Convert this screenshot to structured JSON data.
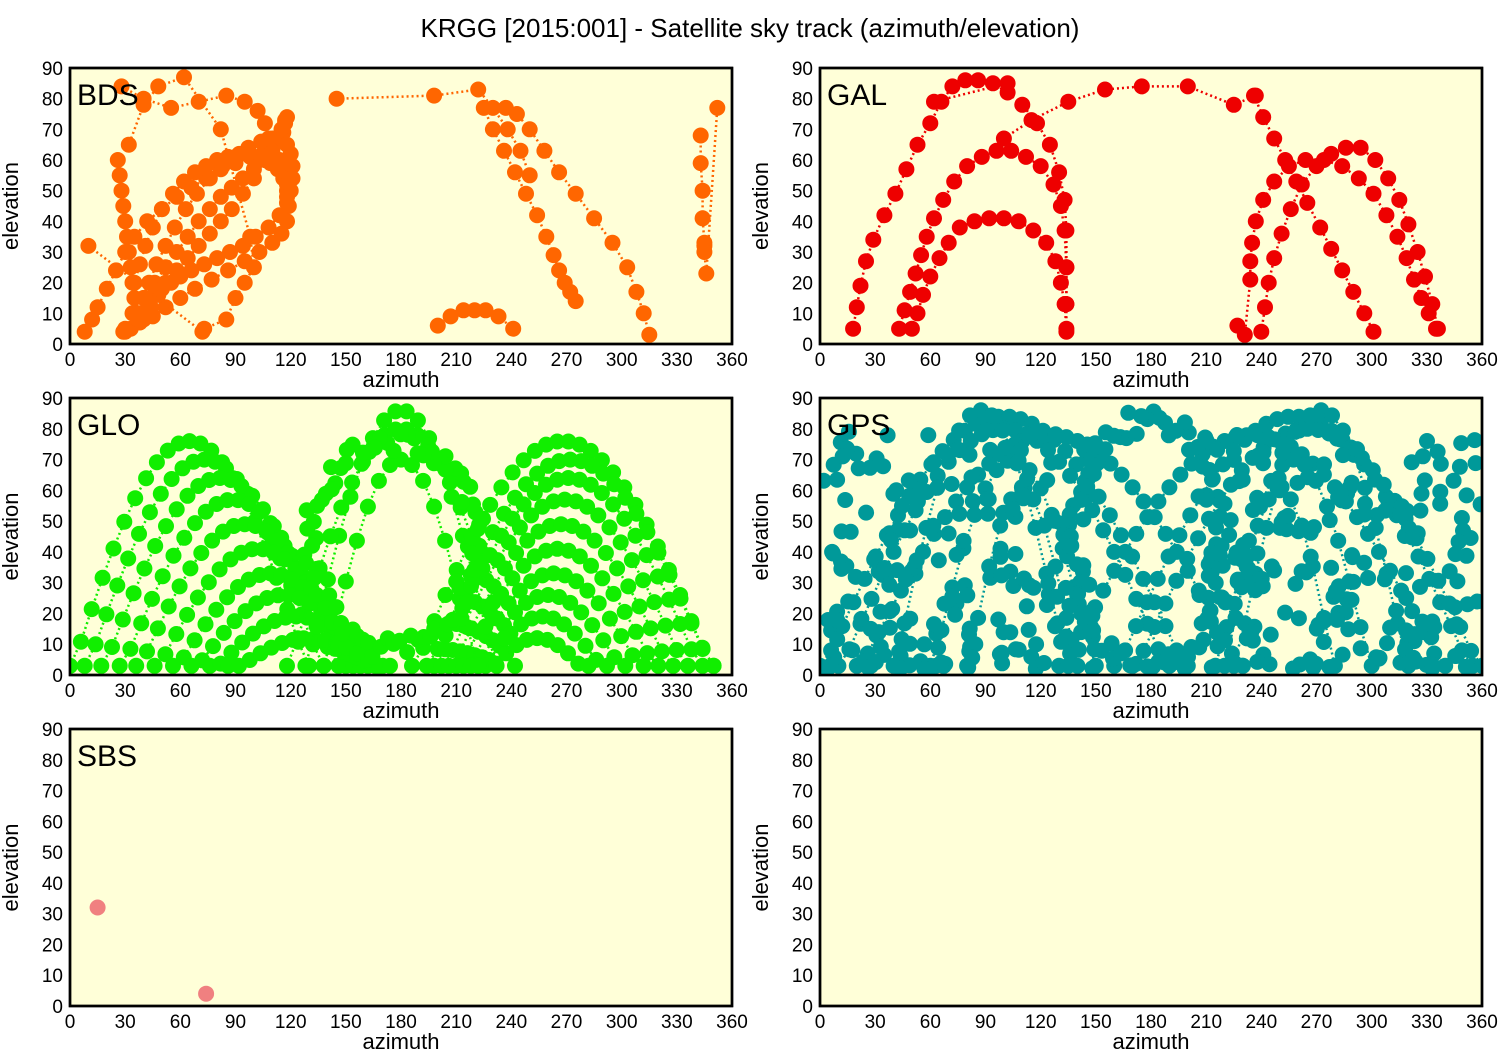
{
  "title": "KRGG [2015:001] - Satellite sky track (azimuth/elevation)",
  "chart_data": [
    {
      "type": "scatter",
      "label": "BDS",
      "color": "#ff6600",
      "xlabel": "azimuth",
      "ylabel": "elevation",
      "xlim": [
        0,
        360
      ],
      "ylim": [
        0,
        90
      ],
      "xticks": [
        0,
        30,
        60,
        90,
        120,
        150,
        180,
        210,
        240,
        270,
        300,
        330,
        360
      ],
      "yticks": [
        0,
        10,
        20,
        30,
        40,
        50,
        60,
        70,
        80,
        90
      ],
      "series": [
        {
          "x": [
            8,
            12,
            15,
            20,
            25,
            30,
            35,
            42,
            50,
            58,
            66,
            74,
            82,
            90,
            98,
            105,
            110,
            114,
            116,
            118,
            119,
            118,
            115,
            110,
            103,
            95,
            86,
            77,
            68,
            60,
            52,
            45,
            38,
            33,
            30,
            29
          ],
          "y": [
            4,
            8,
            12,
            18,
            24,
            30,
            35,
            40,
            44,
            48,
            51,
            54,
            57,
            59,
            61,
            62,
            63,
            60,
            55,
            50,
            45,
            40,
            36,
            33,
            30,
            27,
            24,
            21,
            18,
            15,
            12,
            9,
            7,
            5,
            4,
            4
          ]
        },
        {
          "x": [
            30,
            34,
            40,
            46,
            52,
            58,
            64,
            70,
            76,
            82,
            88,
            94,
            100,
            106,
            110,
            114,
            116,
            117,
            118,
            117,
            115,
            111,
            106,
            100,
            94,
            88,
            82,
            76,
            70,
            64,
            58,
            52,
            48,
            44,
            40
          ],
          "y": [
            5,
            10,
            15,
            20,
            25,
            30,
            35,
            40,
            44,
            48,
            51,
            54,
            57,
            60,
            63,
            66,
            69,
            72,
            74,
            73,
            70,
            66,
            60,
            54,
            49,
            44,
            40,
            36,
            32,
            28,
            24,
            20,
            16,
            12,
            8
          ]
        },
        {
          "x": [
            26,
            27,
            28,
            29,
            30,
            31,
            32,
            33,
            34,
            35,
            36,
            37,
            38,
            40,
            43,
            47,
            52,
            57,
            63,
            69,
            76,
            83,
            90,
            97,
            104,
            110,
            115,
            118,
            120,
            121,
            121,
            120,
            118,
            114,
            108,
            101,
            94,
            87,
            80,
            73,
            66,
            60,
            55,
            50,
            46
          ],
          "y": [
            60,
            55,
            50,
            45,
            40,
            35,
            30,
            25,
            20,
            15,
            10,
            8,
            10,
            15,
            20,
            26,
            32,
            38,
            44,
            49,
            54,
            58,
            61,
            64,
            66,
            67,
            67,
            65,
            62,
            58,
            54,
            50,
            46,
            42,
            38,
            35,
            32,
            30,
            28,
            26,
            24,
            22,
            20,
            18,
            16
          ]
        },
        {
          "x": [
            35,
            38,
            41,
            45,
            50,
            56,
            62,
            68,
            74,
            80,
            86,
            92,
            98,
            104,
            109,
            113,
            116,
            118,
            119,
            118
          ],
          "y": [
            20,
            26,
            32,
            38,
            44,
            49,
            53,
            56,
            58,
            60,
            61,
            62,
            62,
            61,
            59,
            57,
            54,
            52,
            50,
            48
          ]
        },
        {
          "x": [
            28,
            40,
            55,
            70,
            85,
            95,
            102,
            106,
            108,
            109
          ],
          "y": [
            84,
            80,
            77,
            79,
            81,
            79,
            76,
            72,
            67,
            62
          ]
        },
        {
          "x": [
            145,
            198,
            222,
            230,
            238,
            245,
            250
          ],
          "y": [
            80,
            81,
            83,
            77,
            70,
            63,
            55
          ]
        },
        {
          "x": [
            225,
            230,
            236,
            242,
            248,
            254,
            259,
            263,
            266,
            269,
            272,
            275
          ],
          "y": [
            77,
            70,
            63,
            56,
            49,
            42,
            35,
            29,
            24,
            20,
            17,
            14
          ]
        },
        {
          "x": [
            237,
            243,
            250,
            258,
            266,
            275,
            285,
            295,
            303,
            308,
            312,
            315
          ],
          "y": [
            77,
            75,
            70,
            63,
            56,
            49,
            41,
            33,
            25,
            17,
            10,
            3
          ]
        },
        {
          "x": [
            200,
            207,
            214,
            220,
            226,
            233,
            241
          ],
          "y": [
            6,
            9,
            11,
            11,
            11,
            9,
            5
          ]
        },
        {
          "x": [
            343,
            343,
            344,
            344,
            345,
            345,
            345,
            346,
            352
          ],
          "y": [
            68,
            59,
            50,
            41,
            33,
            32,
            30,
            23,
            77
          ]
        },
        {
          "x": [
            10,
            72,
            73,
            85,
            90,
            95,
            100,
            98,
            82,
            62,
            48,
            40,
            32
          ],
          "y": [
            32,
            4,
            5,
            8,
            15,
            20,
            25,
            35,
            70,
            87,
            84,
            78,
            65
          ]
        }
      ]
    },
    {
      "type": "scatter",
      "label": "GAL",
      "color": "#ee0000",
      "xlabel": "azimuth",
      "ylabel": "elevation",
      "xlim": [
        0,
        360
      ],
      "ylim": [
        0,
        90
      ],
      "xticks": [
        0,
        30,
        60,
        90,
        120,
        150,
        180,
        210,
        240,
        270,
        300,
        330,
        360
      ],
      "yticks": [
        0,
        10,
        20,
        30,
        40,
        50,
        60,
        70,
        80,
        90
      ],
      "series": [
        {
          "x": [
            18,
            20,
            22,
            25,
            29,
            35,
            41,
            47,
            53,
            60,
            66,
            72,
            79,
            86,
            94,
            102,
            110,
            118,
            125,
            130,
            133,
            134,
            134,
            134
          ],
          "y": [
            5,
            12,
            19,
            27,
            34,
            42,
            49,
            57,
            65,
            72,
            79,
            84,
            86,
            86,
            85,
            82,
            78,
            72,
            65,
            56,
            47,
            37,
            25,
            13
          ]
        },
        {
          "x": [
            62,
            102
          ],
          "y": [
            79,
            85
          ]
        },
        {
          "x": [
            100,
            115,
            135,
            155,
            175,
            200,
            225,
            237
          ],
          "y": [
            67,
            73,
            79,
            83,
            84,
            84,
            78,
            81
          ]
        },
        {
          "x": [
            43,
            46,
            49,
            52,
            55,
            58,
            62,
            67,
            73,
            80,
            88,
            96,
            104,
            112,
            120,
            127,
            131,
            133,
            134,
            134,
            134
          ],
          "y": [
            5,
            11,
            17,
            23,
            29,
            35,
            41,
            47,
            53,
            58,
            61,
            63,
            63,
            61,
            58,
            52,
            45,
            37,
            25,
            13,
            4
          ]
        },
        {
          "x": [
            50,
            53,
            56,
            60,
            65,
            70,
            76,
            84,
            92,
            100,
            108,
            116,
            123,
            128,
            131,
            133,
            134
          ],
          "y": [
            5,
            10,
            16,
            22,
            28,
            33,
            38,
            40,
            41,
            41,
            40,
            37,
            33,
            27,
            20,
            13,
            5
          ]
        },
        {
          "x": [
            240,
            242,
            244,
            247,
            251,
            256,
            262,
            270,
            278,
            286,
            294,
            302,
            309,
            315,
            320,
            325,
            329,
            333,
            336
          ],
          "y": [
            4,
            12,
            20,
            28,
            36,
            44,
            52,
            58,
            62,
            64,
            64,
            60,
            54,
            47,
            39,
            30,
            22,
            13,
            5
          ]
        },
        {
          "x": [
            227,
            231,
            234,
            234,
            235,
            237,
            241,
            247,
            255,
            264,
            274,
            284,
            293,
            301,
            308,
            314,
            319,
            323,
            327,
            331,
            335
          ],
          "y": [
            6,
            3,
            21,
            27,
            33,
            40,
            47,
            53,
            58,
            60,
            60,
            58,
            54,
            49,
            42,
            35,
            28,
            21,
            15,
            10,
            5
          ]
        },
        {
          "x": [
            236,
            241,
            247,
            253,
            259,
            265,
            272,
            278,
            284,
            290,
            296,
            301
          ],
          "y": [
            81,
            74,
            67,
            60,
            53,
            46,
            38,
            31,
            24,
            17,
            10,
            4
          ]
        }
      ]
    },
    {
      "type": "scatter",
      "label": "GLO",
      "color": "#11ee00",
      "xlabel": "azimuth",
      "ylabel": "elevation",
      "xlim": [
        0,
        360
      ],
      "ylim": [
        0,
        90
      ],
      "xticks": [
        0,
        30,
        60,
        90,
        120,
        150,
        180,
        210,
        240,
        270,
        300,
        330,
        360
      ],
      "yticks": [
        0,
        10,
        20,
        30,
        40,
        50,
        60,
        70,
        80,
        90
      ],
      "arcs": [
        {
          "start": 0,
          "end": 130,
          "peak": 76
        },
        {
          "start": 8,
          "end": 138,
          "peak": 70
        },
        {
          "start": 17,
          "end": 146,
          "peak": 64
        },
        {
          "start": 27,
          "end": 150,
          "peak": 57
        },
        {
          "start": 36,
          "end": 154,
          "peak": 49
        },
        {
          "start": 46,
          "end": 158,
          "peak": 41
        },
        {
          "start": 56,
          "end": 162,
          "peak": 33
        },
        {
          "start": 66,
          "end": 166,
          "peak": 26
        },
        {
          "start": 76,
          "end": 170,
          "peak": 19
        },
        {
          "start": 86,
          "end": 174,
          "peak": 12
        },
        {
          "start": 186,
          "end": 350,
          "peak": 76
        },
        {
          "start": 194,
          "end": 350,
          "peak": 70
        },
        {
          "start": 198,
          "end": 344,
          "peak": 64
        },
        {
          "start": 202,
          "end": 336,
          "peak": 57
        },
        {
          "start": 206,
          "end": 328,
          "peak": 49
        },
        {
          "start": 210,
          "end": 320,
          "peak": 41
        },
        {
          "start": 214,
          "end": 312,
          "peak": 33
        },
        {
          "start": 218,
          "end": 302,
          "peak": 26
        },
        {
          "start": 222,
          "end": 292,
          "peak": 19
        },
        {
          "start": 226,
          "end": 282,
          "peak": 12
        },
        {
          "start": 128,
          "end": 232,
          "peak": 86
        },
        {
          "start": 118,
          "end": 242,
          "peak": 80
        },
        {
          "start": 138,
          "end": 222,
          "peak": 70
        }
      ],
      "ring": {
        "cx": 176,
        "cy": 42,
        "rx": 40,
        "ry": 30
      }
    },
    {
      "type": "scatter",
      "label": "GPS",
      "color": "#009999",
      "xlabel": "azimuth",
      "ylabel": "elevation",
      "xlim": [
        0,
        360
      ],
      "ylim": [
        0,
        90
      ],
      "xticks": [
        0,
        30,
        60,
        90,
        120,
        150,
        180,
        210,
        240,
        270,
        300,
        330,
        360
      ],
      "yticks": [
        0,
        10,
        20,
        30,
        40,
        50,
        60,
        70,
        80,
        90
      ],
      "arcs": [
        {
          "start": 0,
          "end": 200,
          "peak": 84
        },
        {
          "start": 10,
          "end": 190,
          "peak": 80
        },
        {
          "start": 20,
          "end": 230,
          "peak": 78
        },
        {
          "start": 160,
          "end": 355,
          "peak": 84
        },
        {
          "start": 170,
          "end": 360,
          "peak": 80
        },
        {
          "start": 130,
          "end": 340,
          "peak": 78
        },
        {
          "start": 40,
          "end": 135,
          "peak": 86
        },
        {
          "start": 225,
          "end": 320,
          "peak": 86
        },
        {
          "start": 60,
          "end": 150,
          "peak": 70
        },
        {
          "start": 215,
          "end": 300,
          "peak": 70
        },
        {
          "start": 80,
          "end": 140,
          "peak": 60
        },
        {
          "start": 220,
          "end": 280,
          "peak": 60
        }
      ],
      "ring": {
        "cx": 178,
        "cy": 42,
        "rx": 36,
        "ry": 36
      }
    },
    {
      "type": "scatter",
      "label": "SBS",
      "color": "#f08080",
      "xlabel": "azimuth",
      "ylabel": "elevation",
      "xlim": [
        0,
        360
      ],
      "ylim": [
        0,
        90
      ],
      "xticks": [
        0,
        30,
        60,
        90,
        120,
        150,
        180,
        210,
        240,
        270,
        300,
        330,
        360
      ],
      "yticks": [
        0,
        10,
        20,
        30,
        40,
        50,
        60,
        70,
        80,
        90
      ],
      "series": [
        {
          "x": [
            15
          ],
          "y": [
            32
          ]
        },
        {
          "x": [
            74
          ],
          "y": [
            4
          ]
        }
      ]
    },
    {
      "type": "scatter",
      "label": "",
      "color": "#000000",
      "xlabel": "azimuth",
      "ylabel": "elevation",
      "xlim": [
        0,
        360
      ],
      "ylim": [
        0,
        90
      ],
      "xticks": [
        0,
        30,
        60,
        90,
        120,
        150,
        180,
        210,
        240,
        270,
        300,
        330,
        360
      ],
      "yticks": [
        0,
        10,
        20,
        30,
        40,
        50,
        60,
        70,
        80,
        90
      ],
      "series": []
    }
  ]
}
